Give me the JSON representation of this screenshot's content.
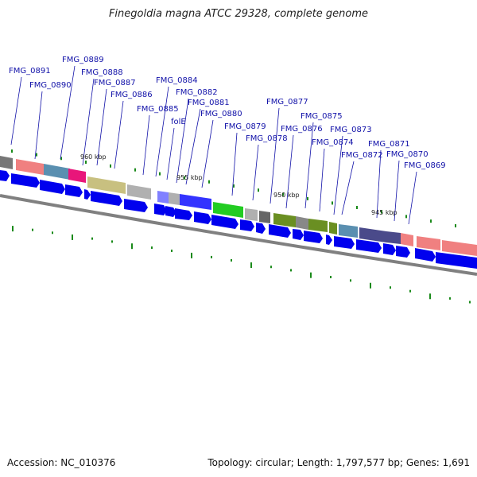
{
  "title": "Finegoldia magna ATCC 29328, complete genome",
  "accession": "Accession: NC_010376",
  "summary": "Topology: circular; Length: 1,797,577 bp; Genes: 1,691",
  "kbp_labels": [
    {
      "text": "960 kbp",
      "pos": 0.0
    },
    {
      "text": "955 kbp",
      "pos": 0.0
    },
    {
      "text": "950 kbp",
      "pos": 0.0
    },
    {
      "text": "945 kbp",
      "pos": 0.0
    }
  ],
  "genes": [
    "FMG_0891",
    "FMG_0890",
    "FMG_0889",
    "FMG_0888",
    "FMG_0887",
    "FMG_0886",
    "FMG_0885",
    "FMG_0884",
    "folE",
    "FMG_0882",
    "FMG_0881",
    "FMG_0880",
    "FMG_0879",
    "FMG_0878",
    "FMG_0877",
    "FMG_0876",
    "FMG_0875",
    "FMG_0874",
    "FMG_0873",
    "FMG_0872",
    "FMG_0871",
    "FMG_0870",
    "FMG_0869"
  ],
  "colors": {
    "label": "#1010a8",
    "arrow": "#0000ee",
    "tick": "#1a8a1a",
    "backbone": "#808080"
  }
}
